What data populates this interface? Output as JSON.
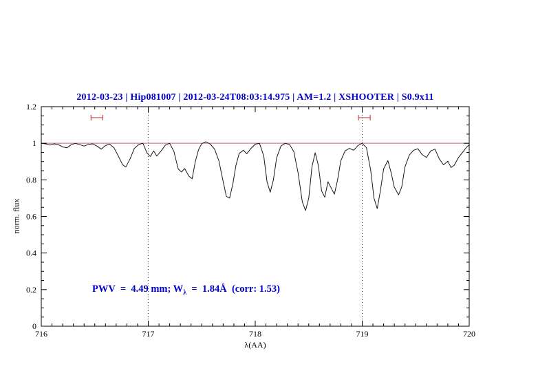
{
  "title": {
    "text": "2012-03-23 | Hip081007 | 2012-03-24T08:03:14.975 | AM=1.2 | XSHOOTER | S0.9x11",
    "color": "#0000cc"
  },
  "annotation": {
    "prefix": "PWV  =  4.49 mm; W",
    "subscript": "λ",
    "suffix": "  =  1.84Å  (corr: 1.53)",
    "color": "#0000cc"
  },
  "chart_data": {
    "type": "line",
    "title": "2012-03-23 | Hip081007 | 2012-03-24T08:03:14.975 | AM=1.2 | XSHOOTER | S0.9x11",
    "xlabel": "λ(AA)",
    "ylabel": "norm. flux",
    "xlim": [
      716,
      720
    ],
    "ylim": [
      0,
      1.2
    ],
    "grid": false,
    "x_ticks": [
      716,
      717,
      718,
      719,
      720
    ],
    "x_tick_labels": [
      "716",
      "717",
      "718",
      "719",
      "720"
    ],
    "y_ticks": [
      0,
      0.2,
      0.4,
      0.6,
      0.8,
      1,
      1.2
    ],
    "y_tick_labels": [
      "0",
      "0.2",
      "0.4",
      "0.6",
      "0.8",
      "1",
      "1.2"
    ],
    "reference_line": {
      "y": 1.0
    },
    "vlines": [
      717,
      719
    ],
    "range_markers": [
      {
        "x_center": 716.52,
        "half_width": 0.055,
        "y": 1.14
      },
      {
        "x_center": 719.02,
        "half_width": 0.055,
        "y": 1.14
      }
    ],
    "colors": {
      "spectrum": "#161616",
      "reference": "#c86464",
      "marker": "#c84646",
      "vline": "#3c3c5a",
      "frame": "#000000"
    },
    "series": [
      {
        "name": "telluric-spectrum",
        "points": [
          [
            716.0,
            1.0
          ],
          [
            716.04,
            0.997
          ],
          [
            716.08,
            0.99
          ],
          [
            716.12,
            0.997
          ],
          [
            716.16,
            0.992
          ],
          [
            716.2,
            0.98
          ],
          [
            716.24,
            0.975
          ],
          [
            716.28,
            0.992
          ],
          [
            716.32,
            1.0
          ],
          [
            716.36,
            0.992
          ],
          [
            716.4,
            0.985
          ],
          [
            716.44,
            0.993
          ],
          [
            716.48,
            0.997
          ],
          [
            716.52,
            0.985
          ],
          [
            716.56,
            0.968
          ],
          [
            716.6,
            0.988
          ],
          [
            716.64,
            0.995
          ],
          [
            716.68,
            0.975
          ],
          [
            716.72,
            0.93
          ],
          [
            716.76,
            0.883
          ],
          [
            716.79,
            0.87
          ],
          [
            716.83,
            0.915
          ],
          [
            716.87,
            0.972
          ],
          [
            716.91,
            0.993
          ],
          [
            716.95,
            1.0
          ],
          [
            716.99,
            0.945
          ],
          [
            717.02,
            0.928
          ],
          [
            717.05,
            0.958
          ],
          [
            717.08,
            0.93
          ],
          [
            717.12,
            0.958
          ],
          [
            717.16,
            0.99
          ],
          [
            717.2,
            1.0
          ],
          [
            717.24,
            0.955
          ],
          [
            717.28,
            0.86
          ],
          [
            717.31,
            0.843
          ],
          [
            717.34,
            0.862
          ],
          [
            717.38,
            0.82
          ],
          [
            717.41,
            0.806
          ],
          [
            717.44,
            0.9
          ],
          [
            717.47,
            0.965
          ],
          [
            717.5,
            0.998
          ],
          [
            717.54,
            1.008
          ],
          [
            717.58,
            0.995
          ],
          [
            717.62,
            0.968
          ],
          [
            717.66,
            0.905
          ],
          [
            717.7,
            0.79
          ],
          [
            717.73,
            0.71
          ],
          [
            717.76,
            0.7
          ],
          [
            717.79,
            0.775
          ],
          [
            717.82,
            0.88
          ],
          [
            717.85,
            0.945
          ],
          [
            717.89,
            0.962
          ],
          [
            717.92,
            0.942
          ],
          [
            717.96,
            0.972
          ],
          [
            718.0,
            0.995
          ],
          [
            718.04,
            1.0
          ],
          [
            718.08,
            0.93
          ],
          [
            718.11,
            0.79
          ],
          [
            718.14,
            0.732
          ],
          [
            718.17,
            0.8
          ],
          [
            718.2,
            0.92
          ],
          [
            718.24,
            0.985
          ],
          [
            718.28,
            1.0
          ],
          [
            718.32,
            0.993
          ],
          [
            718.36,
            0.955
          ],
          [
            718.4,
            0.84
          ],
          [
            718.44,
            0.68
          ],
          [
            718.47,
            0.632
          ],
          [
            718.5,
            0.7
          ],
          [
            718.53,
            0.87
          ],
          [
            718.56,
            0.948
          ],
          [
            718.59,
            0.88
          ],
          [
            718.62,
            0.74
          ],
          [
            718.65,
            0.705
          ],
          [
            718.68,
            0.79
          ],
          [
            718.71,
            0.755
          ],
          [
            718.74,
            0.722
          ],
          [
            718.77,
            0.8
          ],
          [
            718.8,
            0.905
          ],
          [
            718.84,
            0.958
          ],
          [
            718.88,
            0.972
          ],
          [
            718.92,
            0.962
          ],
          [
            718.96,
            0.988
          ],
          [
            719.0,
            1.0
          ],
          [
            719.04,
            0.975
          ],
          [
            719.08,
            0.85
          ],
          [
            719.11,
            0.7
          ],
          [
            719.14,
            0.643
          ],
          [
            719.17,
            0.74
          ],
          [
            719.2,
            0.86
          ],
          [
            719.24,
            0.905
          ],
          [
            719.27,
            0.84
          ],
          [
            719.3,
            0.76
          ],
          [
            719.34,
            0.718
          ],
          [
            719.37,
            0.762
          ],
          [
            719.4,
            0.872
          ],
          [
            719.44,
            0.935
          ],
          [
            719.48,
            0.962
          ],
          [
            719.52,
            0.97
          ],
          [
            719.56,
            0.938
          ],
          [
            719.6,
            0.922
          ],
          [
            719.64,
            0.958
          ],
          [
            719.68,
            0.968
          ],
          [
            719.72,
            0.915
          ],
          [
            719.76,
            0.882
          ],
          [
            719.8,
            0.902
          ],
          [
            719.83,
            0.868
          ],
          [
            719.86,
            0.88
          ],
          [
            719.9,
            0.922
          ],
          [
            719.94,
            0.952
          ],
          [
            719.98,
            0.982
          ],
          [
            720.0,
            0.99
          ]
        ]
      }
    ],
    "legend": null
  }
}
